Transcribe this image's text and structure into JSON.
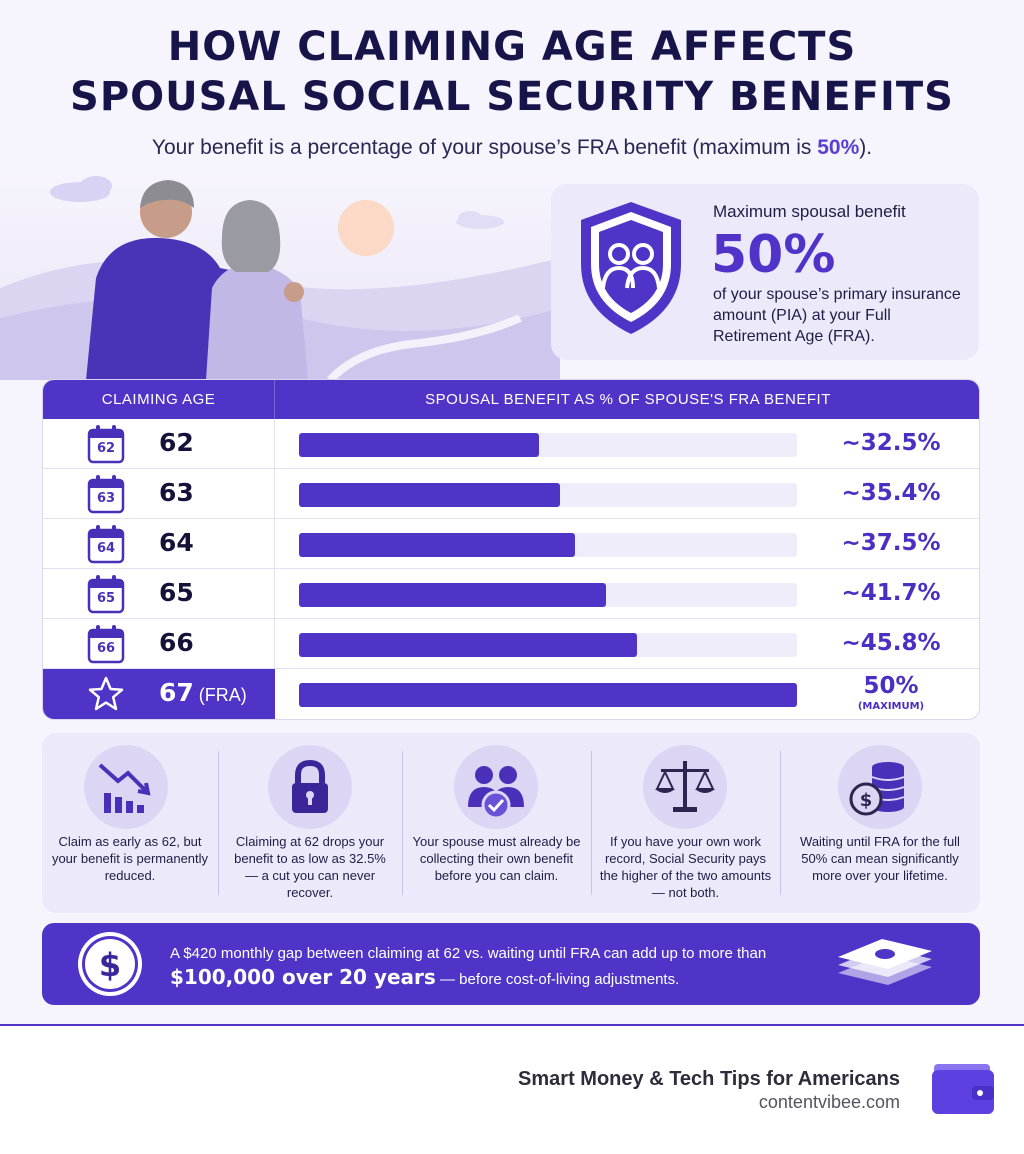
{
  "header": {
    "title_line1": "HOW CLAIMING AGE AFFECTS",
    "title_line2": "SPOUSAL SOCIAL SECURITY BENEFITS",
    "subtitle_pre": "Your benefit is a percentage of your spouse’s FRA benefit (maximum is ",
    "subtitle_highlight": "50%",
    "subtitle_post": ")."
  },
  "max_card": {
    "label": "Maximum spousal benefit",
    "value": "50%",
    "description": "of your spouse’s primary insurance amount (PIA) at your Full Retirement Age (FRA).",
    "icon": "shield-couple-icon"
  },
  "chart_data": {
    "type": "bar",
    "orientation": "horizontal",
    "col_header_age": "CLAIMING AGE",
    "col_header_value": "SPOUSAL BENEFIT AS % OF SPOUSE'S FRA BENEFIT",
    "xlim": [
      0,
      50
    ],
    "rows": [
      {
        "age": "62",
        "suffix": "",
        "value": 32.5,
        "label": "~32.5%",
        "sublabel": "",
        "icon": "calendar-icon",
        "calendar": "62"
      },
      {
        "age": "63",
        "suffix": "",
        "value": 35.4,
        "label": "~35.4%",
        "sublabel": "",
        "icon": "calendar-icon",
        "calendar": "63"
      },
      {
        "age": "64",
        "suffix": "",
        "value": 37.5,
        "label": "~37.5%",
        "sublabel": "",
        "icon": "calendar-icon",
        "calendar": "64"
      },
      {
        "age": "65",
        "suffix": "",
        "value": 41.7,
        "label": "~41.7%",
        "sublabel": "",
        "icon": "calendar-icon",
        "calendar": "65"
      },
      {
        "age": "66",
        "suffix": "",
        "value": 45.8,
        "label": "~45.8%",
        "sublabel": "",
        "icon": "calendar-icon",
        "calendar": "66"
      },
      {
        "age": "67",
        "suffix": "(FRA)",
        "value": 50,
        "label": "50%",
        "sublabel": "(MAXIMUM)",
        "icon": "star-icon",
        "calendar": ""
      }
    ],
    "colors": {
      "bar": "#5034c7",
      "track": "#efedf9",
      "accent": "#5034c7"
    }
  },
  "tips": [
    {
      "icon": "declining-bars-icon",
      "text": "Claim as early as 62, but your benefit is permanently reduced."
    },
    {
      "icon": "padlock-icon",
      "text": "Claiming at 62 drops your benefit to as low as 32.5% — a cut you can never recover."
    },
    {
      "icon": "couple-check-icon",
      "text": "Your spouse must already be collecting their own benefit before you can claim."
    },
    {
      "icon": "scales-icon",
      "text": "If you have your own work record, Social Security pays the higher of the two amounts — not both."
    },
    {
      "icon": "coin-stack-icon",
      "text": "Waiting until FRA for the full 50% can mean significantly more over your lifetime."
    }
  ],
  "banner": {
    "line1": "A $420 monthly gap between claiming at 62 vs. waiting until FRA can add up to more than",
    "line2_big": "$100,000 over 20 years",
    "line2_rest": " — before cost-of-living adjustments.",
    "icon": "dollar-coin-icon",
    "icon2": "money-stack-icon"
  },
  "footer": {
    "brand": "Smart Money & Tech Tips for Americans",
    "site": "contentvibee.com",
    "icon": "wallet-icon"
  }
}
